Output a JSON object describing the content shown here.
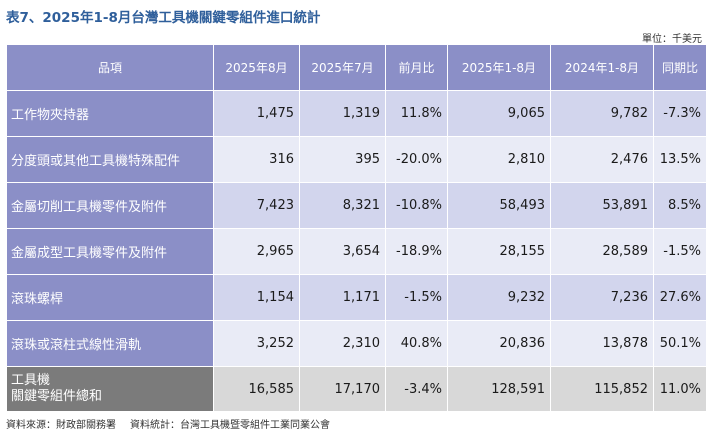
{
  "title": "表7、2025年1-8月台灣工具機關鍵零組件進口統計",
  "unit": "單位：千美元",
  "table": {
    "headers": [
      "品項",
      "2025年8月",
      "2025年7月",
      "前月比",
      "2025年1-8月",
      "2024年1-8月",
      "同期比"
    ],
    "rows": [
      {
        "name": "工作物夾持器",
        "values": [
          "1,475",
          "1,319",
          "11.8%",
          "9,065",
          "9,782",
          "-7.3%"
        ]
      },
      {
        "name": "分度頭或其他工具機特殊配件",
        "values": [
          "316",
          "395",
          "-20.0%",
          "2,810",
          "2,476",
          "13.5%"
        ]
      },
      {
        "name": "金屬切削工具機零件及附件",
        "values": [
          "7,423",
          "8,321",
          "-10.8%",
          "58,493",
          "53,891",
          "8.5%"
        ]
      },
      {
        "name": "金屬成型工具機零件及附件",
        "values": [
          "2,965",
          "3,654",
          "-18.9%",
          "28,155",
          "28,589",
          "-1.5%"
        ]
      },
      {
        "name": "滾珠螺桿",
        "values": [
          "1,154",
          "1,171",
          "-1.5%",
          "9,232",
          "7,236",
          "27.6%"
        ]
      },
      {
        "name": "滾珠或滾柱式線性滑軌",
        "values": [
          "3,252",
          "2,310",
          "40.8%",
          "20,836",
          "13,878",
          "50.1%"
        ]
      }
    ],
    "total": {
      "name_line1": "工具機",
      "name_line2": "關鍵零組件總和",
      "values": [
        "16,585",
        "17,170",
        "-3.4%",
        "128,591",
        "115,852",
        "11.0%"
      ]
    }
  },
  "footnote": {
    "source1": "資料來源：財政部關務署",
    "source2": "資料統計：台灣工具機暨零組件工業同業公會"
  },
  "colors": {
    "title": "#2f5f9b",
    "header_bg": "#8b8fc7",
    "row_odd": "#d2d5ed",
    "row_even": "#e9ebf6",
    "total_label_bg": "#7b7b7b",
    "total_bg": "#d8d8d8"
  }
}
